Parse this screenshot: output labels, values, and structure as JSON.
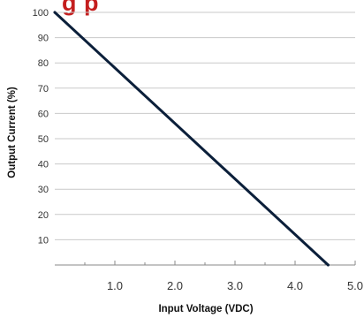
{
  "title_fragment": "g                          p",
  "colors": {
    "title": "#c41e1e",
    "line": "#0b1f3a",
    "grid": "#c9c9c9",
    "axis": "#888888"
  },
  "chart_data": {
    "type": "line",
    "title": "",
    "xlabel": "Input Voltage (VDC)",
    "ylabel": "Output Current (%)",
    "xlim": [
      0.0,
      5.0
    ],
    "ylim": [
      0,
      100
    ],
    "x_ticks": [
      1.0,
      2.0,
      3.0,
      4.0,
      5.0
    ],
    "x_tick_labels": [
      "1.0",
      "2.0",
      "3.0",
      "4.0",
      "5.0"
    ],
    "y_ticks": [
      10,
      20,
      30,
      40,
      50,
      60,
      70,
      80,
      90,
      100
    ],
    "y_tick_labels": [
      "10",
      "20",
      "30",
      "40",
      "50",
      "60",
      "70",
      "80",
      "90",
      "100"
    ],
    "grid": "horizontal",
    "series": [
      {
        "x": [
          0.0,
          4.55
        ],
        "y": [
          100,
          0
        ]
      }
    ]
  }
}
